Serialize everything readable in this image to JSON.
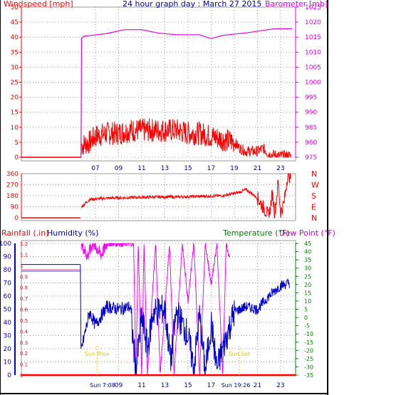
{
  "chart_data": [
    {
      "type": "line",
      "title": "24 hour graph day : March 27 2015",
      "left_axis_label": "Windspeed [mph]",
      "right_axis_label": "Barometer [mb]",
      "y_left_ticks": [
        0,
        5,
        10,
        15,
        20,
        25,
        30,
        35,
        40,
        45,
        50
      ],
      "y_right_ticks": [
        975,
        980,
        985,
        990,
        995,
        1000,
        1005,
        1010,
        1015,
        1020,
        1025
      ],
      "x_ticks": [
        "07",
        "09",
        "11",
        "13",
        "15",
        "17",
        "19",
        "21",
        "23"
      ],
      "grid": true,
      "colors": {
        "windspeed": "#ff0000",
        "barometer": "#e000e0"
      },
      "series": [
        {
          "name": "Windspeed [mph]",
          "axis": "left",
          "x": [
            0,
            5.7,
            5.8,
            6.5,
            7,
            8,
            9,
            10,
            11,
            12,
            13,
            14,
            15,
            16,
            17,
            18,
            19,
            19.5,
            20,
            21,
            21.5,
            22,
            23,
            23.9
          ],
          "y": [
            0,
            0,
            4,
            5,
            7,
            8,
            8,
            9,
            9,
            9,
            9,
            9,
            8,
            8,
            7,
            6,
            5,
            3,
            2,
            2,
            3,
            1,
            0.5,
            0.5
          ]
        },
        {
          "name": "Barometer [mb]",
          "axis": "right",
          "x": [
            0,
            5.75,
            5.8,
            6.0,
            8.0,
            9.5,
            11.0,
            12.5,
            14.0,
            16.0,
            17.0,
            18.0,
            20.0,
            22.5,
            24
          ],
          "y": [
            975,
            975,
            1014.5,
            1015.3,
            1016.2,
            1017.5,
            1017.5,
            1016.3,
            1015.8,
            1015.8,
            1014.5,
            1015.6,
            1016.4,
            1017.8,
            1017.8
          ]
        }
      ]
    },
    {
      "type": "line",
      "left_axis_label": "",
      "y_left_ticks": [
        0,
        90,
        180,
        270,
        360
      ],
      "y_right_ticks": [
        "N",
        "E",
        "S",
        "W",
        "N"
      ],
      "grid": true,
      "series": [
        {
          "name": "Wind direction",
          "x": [
            0,
            5.7,
            5.8,
            6.5,
            8,
            10,
            12,
            14,
            16,
            18,
            19.5,
            20,
            20.5,
            21,
            21.5,
            22,
            22.3,
            22.5,
            22.8,
            23,
            23.3,
            23.6,
            24
          ],
          "y": [
            0,
            0,
            90,
            150,
            160,
            165,
            170,
            170,
            175,
            180,
            210,
            230,
            200,
            160,
            90,
            10,
            200,
            30,
            300,
            40,
            120,
            350,
            330
          ]
        }
      ]
    },
    {
      "type": "line",
      "left_label_1": "Rainfall (.in)",
      "left_label_2": "Humidity (%)",
      "right_label_1": "Temperature (°F)",
      "right_label_2": "Dew Point (°F)",
      "humidity_ticks": [
        0,
        10,
        20,
        30,
        40,
        50,
        60,
        70,
        80,
        90,
        100
      ],
      "rain_ticks": [
        "0",
        "0.1",
        "0.2",
        "0.3",
        "0.4",
        "0.5",
        "0.6",
        "0.7",
        "0.8",
        "0.9",
        "1",
        "1.1",
        "1.2"
      ],
      "temperature_ticks": [
        -35,
        -30,
        -25,
        -20,
        -15,
        -10,
        -5,
        0,
        5,
        10,
        15,
        20,
        25,
        30,
        35,
        40,
        45
      ],
      "x_ticks": [
        "09",
        "11",
        "13",
        "15",
        "17",
        "21",
        "23"
      ],
      "annotations": [
        "Sun Rise",
        "Sun Set"
      ],
      "sun_rise_time": "Sun 7:08",
      "sun_set_time": "Sun 19:26",
      "grid": true,
      "series": [
        {
          "name": "Rainfall (.in)",
          "axis": "rain",
          "x": [
            0,
            24
          ],
          "y": [
            0,
            0
          ]
        },
        {
          "name": "Humidity (%)",
          "axis": "humidity",
          "x": [
            0,
            5.7,
            5.8,
            6.5,
            7,
            8,
            9,
            10,
            10.5,
            11,
            11.5,
            12,
            13,
            13.5,
            14,
            15,
            15.5,
            16,
            16.5,
            17,
            17.5,
            18,
            19,
            20,
            21,
            22,
            23,
            23.8
          ],
          "y": [
            84,
            84,
            20,
            48,
            38,
            52,
            50,
            52,
            2,
            45,
            20,
            48,
            50,
            10,
            48,
            30,
            5,
            45,
            2,
            40,
            5,
            20,
            48,
            52,
            50,
            60,
            68,
            70
          ]
        },
        {
          "name": "Temperature (°F)",
          "axis": "temperature",
          "x": [
            0,
            5.7,
            5.8,
            24
          ],
          "y": [
            29,
            29,
            29,
            29
          ]
        },
        {
          "name": "Dew Point (°F)",
          "axis": "temperature",
          "x": [
            5.8,
            6.3,
            6.8,
            7.5,
            8.0,
            10.3,
            10.5,
            10.7,
            11.0,
            11.2,
            11.5,
            12.2,
            12.6,
            13.4,
            13.8,
            14.5,
            15.0,
            15.5,
            16.0,
            16.5,
            17.0,
            17.5,
            18.0,
            18.3,
            18.6
          ],
          "y": [
            45,
            37,
            45,
            38,
            45,
            45,
            -35,
            45,
            -35,
            45,
            -35,
            45,
            -35,
            45,
            -35,
            45,
            10,
            45,
            -35,
            45,
            20,
            45,
            -35,
            45,
            35
          ]
        }
      ]
    }
  ]
}
